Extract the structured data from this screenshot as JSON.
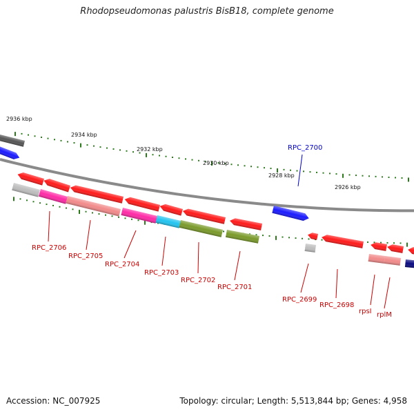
{
  "title": "Rhodopseudomonas palustris BisB18, complete genome",
  "footer": {
    "accession": "Accession: NC_007925",
    "stats": "Topology: circular; Length: 5,513,844 bp; Genes: 4,958"
  },
  "scale_labels": [
    "2936 kbp",
    "2934 kbp",
    "2932 kbp",
    "2930 kbp",
    "2928 kbp",
    "2926 kbp"
  ],
  "gene_labels": [
    "RPC_2706",
    "RPC_2705",
    "RPC_2704",
    "RPC_2703",
    "RPC_2702",
    "RPC_2701",
    "RPC_2700",
    "RPC_2699",
    "RPC_2698",
    "rpsI",
    "rplM"
  ],
  "colors": {
    "backbone": "#8a8a8a",
    "tick": "#2a7a1a",
    "label_red": "#cc0000",
    "label_blue": "#0000cc",
    "red_gene": "#ff1a1a",
    "blue_gene": "#1a1aff",
    "gray_gene": "#bdbdbd",
    "magenta_gene": "#ff2aa6",
    "pink_gene": "#f28a8a",
    "cyan_gene": "#22c4f0",
    "olive_gene": "#7a9a2a",
    "navy_gene": "#0a0a80",
    "dark_gene": "#555555"
  }
}
